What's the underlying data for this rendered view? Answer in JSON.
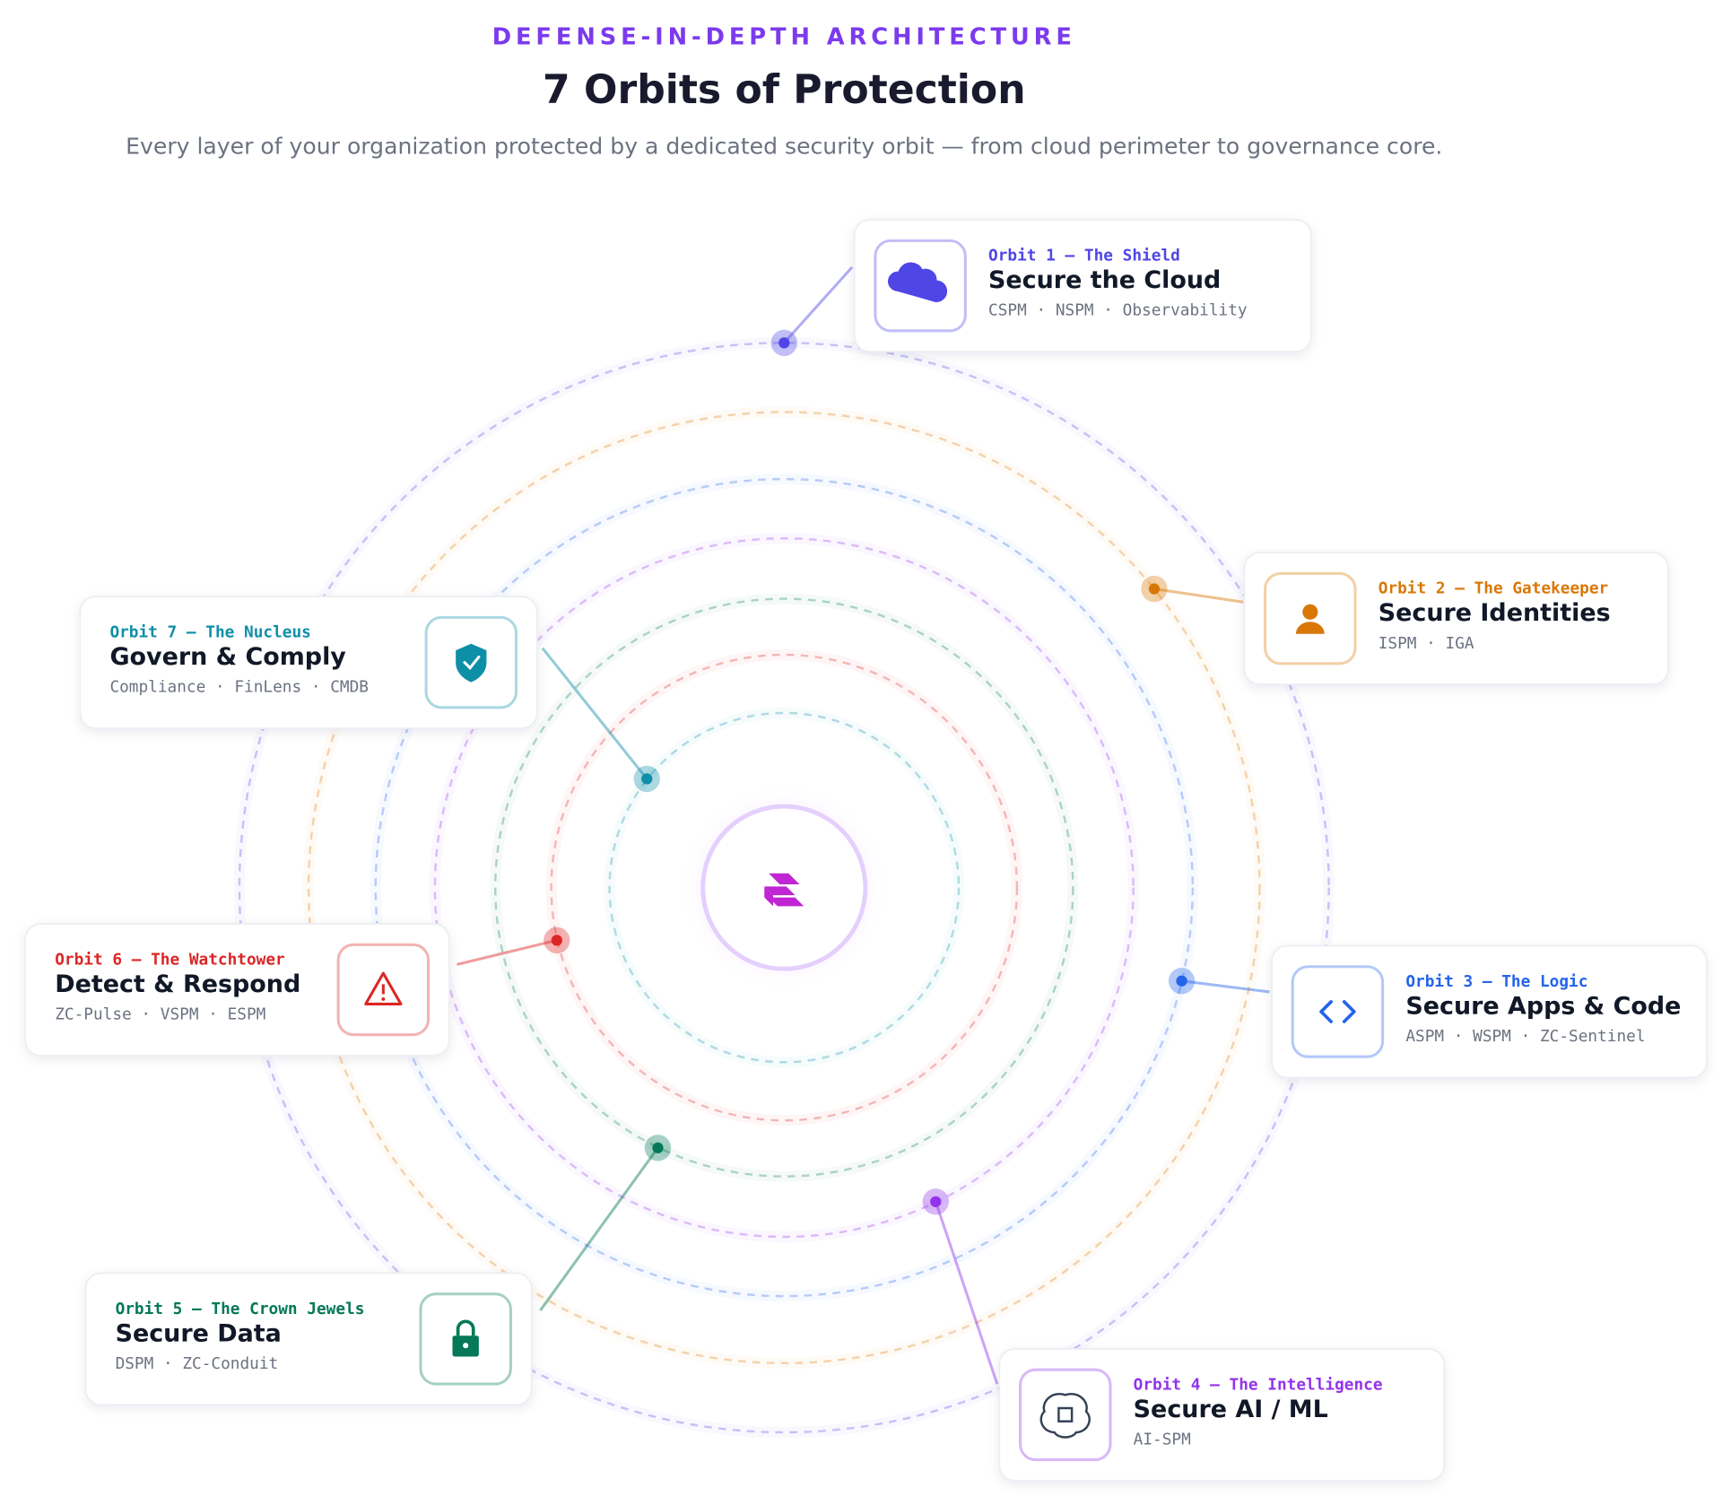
{
  "header": {
    "eyebrow": "DEFENSE-IN-DEPTH ARCHITECTURE",
    "title": "7 Orbits of Protection",
    "subtitle": "Every layer of your organization protected by a dedicated security orbit — from cloud perimeter to governance core."
  },
  "orbits": [
    {
      "label": "Orbit 1 — The Shield",
      "title": "Secure the Cloud",
      "tags": "CSPM · NSPM · Observability",
      "color": "#4f46e5"
    },
    {
      "label": "Orbit 2 — The Gatekeeper",
      "title": "Secure Identities",
      "tags": "ISPM · IGA",
      "color": "#d97706"
    },
    {
      "label": "Orbit 3 — The Logic",
      "title": "Secure Apps & Code",
      "tags": "ASPM · WSPM · ZC-Sentinel",
      "color": "#2563eb"
    },
    {
      "label": "Orbit 4 — The Intelligence",
      "title": "Secure AI / ML",
      "tags": "AI-SPM",
      "color": "#9333ea"
    },
    {
      "label": "Orbit 5 — The Crown Jewels",
      "title": "Secure Data",
      "tags": "DSPM · ZC-Conduit",
      "color": "#047857"
    },
    {
      "label": "Orbit 6 — The Watchtower",
      "title": "Detect & Respond",
      "tags": "ZC-Pulse · VSPM · ESPM",
      "color": "#dc2626"
    },
    {
      "label": "Orbit 7 — The Nucleus",
      "title": "Govern & Comply",
      "tags": "Compliance · FinLens · CMDB",
      "color": "#0e8fa8"
    }
  ]
}
